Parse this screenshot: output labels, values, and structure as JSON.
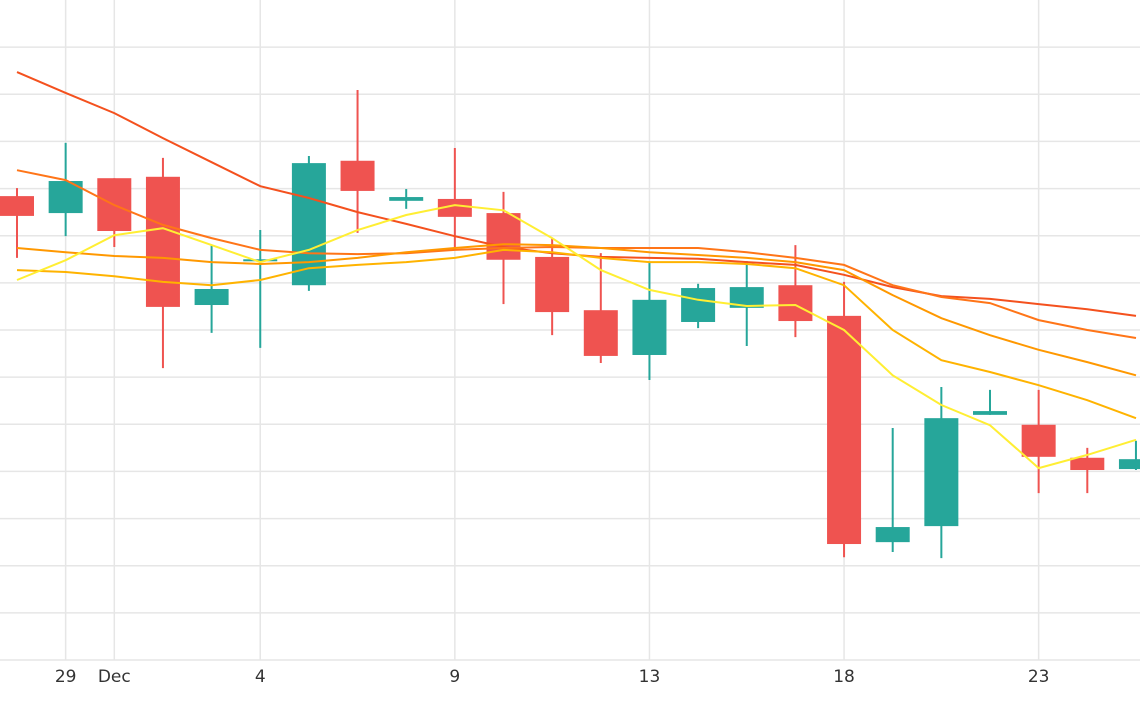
{
  "chart_data": {
    "type": "candlestick",
    "categories": [
      null,
      "29",
      "Dec",
      null,
      null,
      "4",
      null,
      null,
      null,
      "9",
      null,
      null,
      null,
      "13",
      null,
      null,
      null,
      "18",
      null,
      null,
      null,
      "23",
      null,
      null
    ],
    "open": [
      9.84,
      9.48,
      10.22,
      10.25,
      7.53,
      8.48,
      7.95,
      10.59,
      9.74,
      9.78,
      9.48,
      8.55,
      7.42,
      6.47,
      7.17,
      7.47,
      7.95,
      7.3,
      2.5,
      2.84,
      5.2,
      4.99,
      4.29,
      4.05
    ],
    "high": [
      10.01,
      10.97,
      10.22,
      10.65,
      8.8,
      9.12,
      10.69,
      12.09,
      9.99,
      10.86,
      9.93,
      8.95,
      8.63,
      8.44,
      7.98,
      8.46,
      8.8,
      8.02,
      4.92,
      5.79,
      5.73,
      5.73,
      4.5,
      4.65
    ],
    "low": [
      8.53,
      8.99,
      8.76,
      6.19,
      6.94,
      6.62,
      7.83,
      9.06,
      9.57,
      8.7,
      7.55,
      6.89,
      6.3,
      5.94,
      7.04,
      6.66,
      6.85,
      2.18,
      2.29,
      2.16,
      5.2,
      3.54,
      3.54,
      4.03
    ],
    "close": [
      9.42,
      10.16,
      9.1,
      7.49,
      7.87,
      8.5,
      10.54,
      9.95,
      9.82,
      9.4,
      8.49,
      7.38,
      6.45,
      7.64,
      7.89,
      7.91,
      7.19,
      2.46,
      2.82,
      5.13,
      5.28,
      4.31,
      4.03,
      4.26
    ],
    "up_color": "#26a69a",
    "down_color": "#ef5350",
    "series": [
      {
        "color": "#f4511e",
        "values": [
          12.47,
          12.03,
          11.6,
          11.07,
          10.56,
          10.05,
          9.8,
          9.5,
          9.25,
          8.99,
          8.76,
          8.63,
          8.55,
          8.53,
          8.51,
          8.44,
          8.38,
          8.17,
          7.91,
          7.72,
          7.66,
          7.55,
          7.44,
          7.3
        ]
      },
      {
        "color": "#ff7518",
        "values": [
          10.39,
          10.18,
          9.65,
          9.23,
          8.95,
          8.7,
          8.63,
          8.61,
          8.63,
          8.7,
          8.74,
          8.76,
          8.74,
          8.74,
          8.74,
          8.65,
          8.53,
          8.38,
          7.95,
          7.7,
          7.57,
          7.21,
          7.0,
          6.83
        ]
      },
      {
        "color": "#ff9800",
        "values": [
          8.74,
          8.65,
          8.57,
          8.53,
          8.44,
          8.4,
          8.44,
          8.53,
          8.65,
          8.74,
          8.82,
          8.8,
          8.74,
          8.65,
          8.59,
          8.53,
          8.44,
          8.27,
          7.74,
          7.25,
          6.89,
          6.58,
          6.32,
          6.04
        ]
      },
      {
        "color": "#ffb300",
        "values": [
          8.27,
          8.23,
          8.14,
          8.02,
          7.95,
          8.06,
          8.31,
          8.38,
          8.44,
          8.53,
          8.7,
          8.65,
          8.53,
          8.44,
          8.44,
          8.4,
          8.31,
          7.95,
          7.0,
          6.36,
          6.11,
          5.83,
          5.51,
          5.13
        ]
      },
      {
        "color": "#ffee33",
        "values": [
          8.06,
          8.48,
          9.01,
          9.16,
          8.8,
          8.44,
          8.7,
          9.12,
          9.44,
          9.65,
          9.54,
          8.95,
          8.27,
          7.85,
          7.64,
          7.51,
          7.53,
          7.0,
          6.04,
          5.41,
          4.98,
          4.07,
          4.35,
          4.67
        ]
      }
    ],
    "ylim": [
      0,
      14
    ],
    "yticks": [
      0,
      1,
      2,
      3,
      4,
      5,
      6,
      7,
      8,
      9,
      10,
      11,
      12,
      13
    ],
    "grid": true
  }
}
